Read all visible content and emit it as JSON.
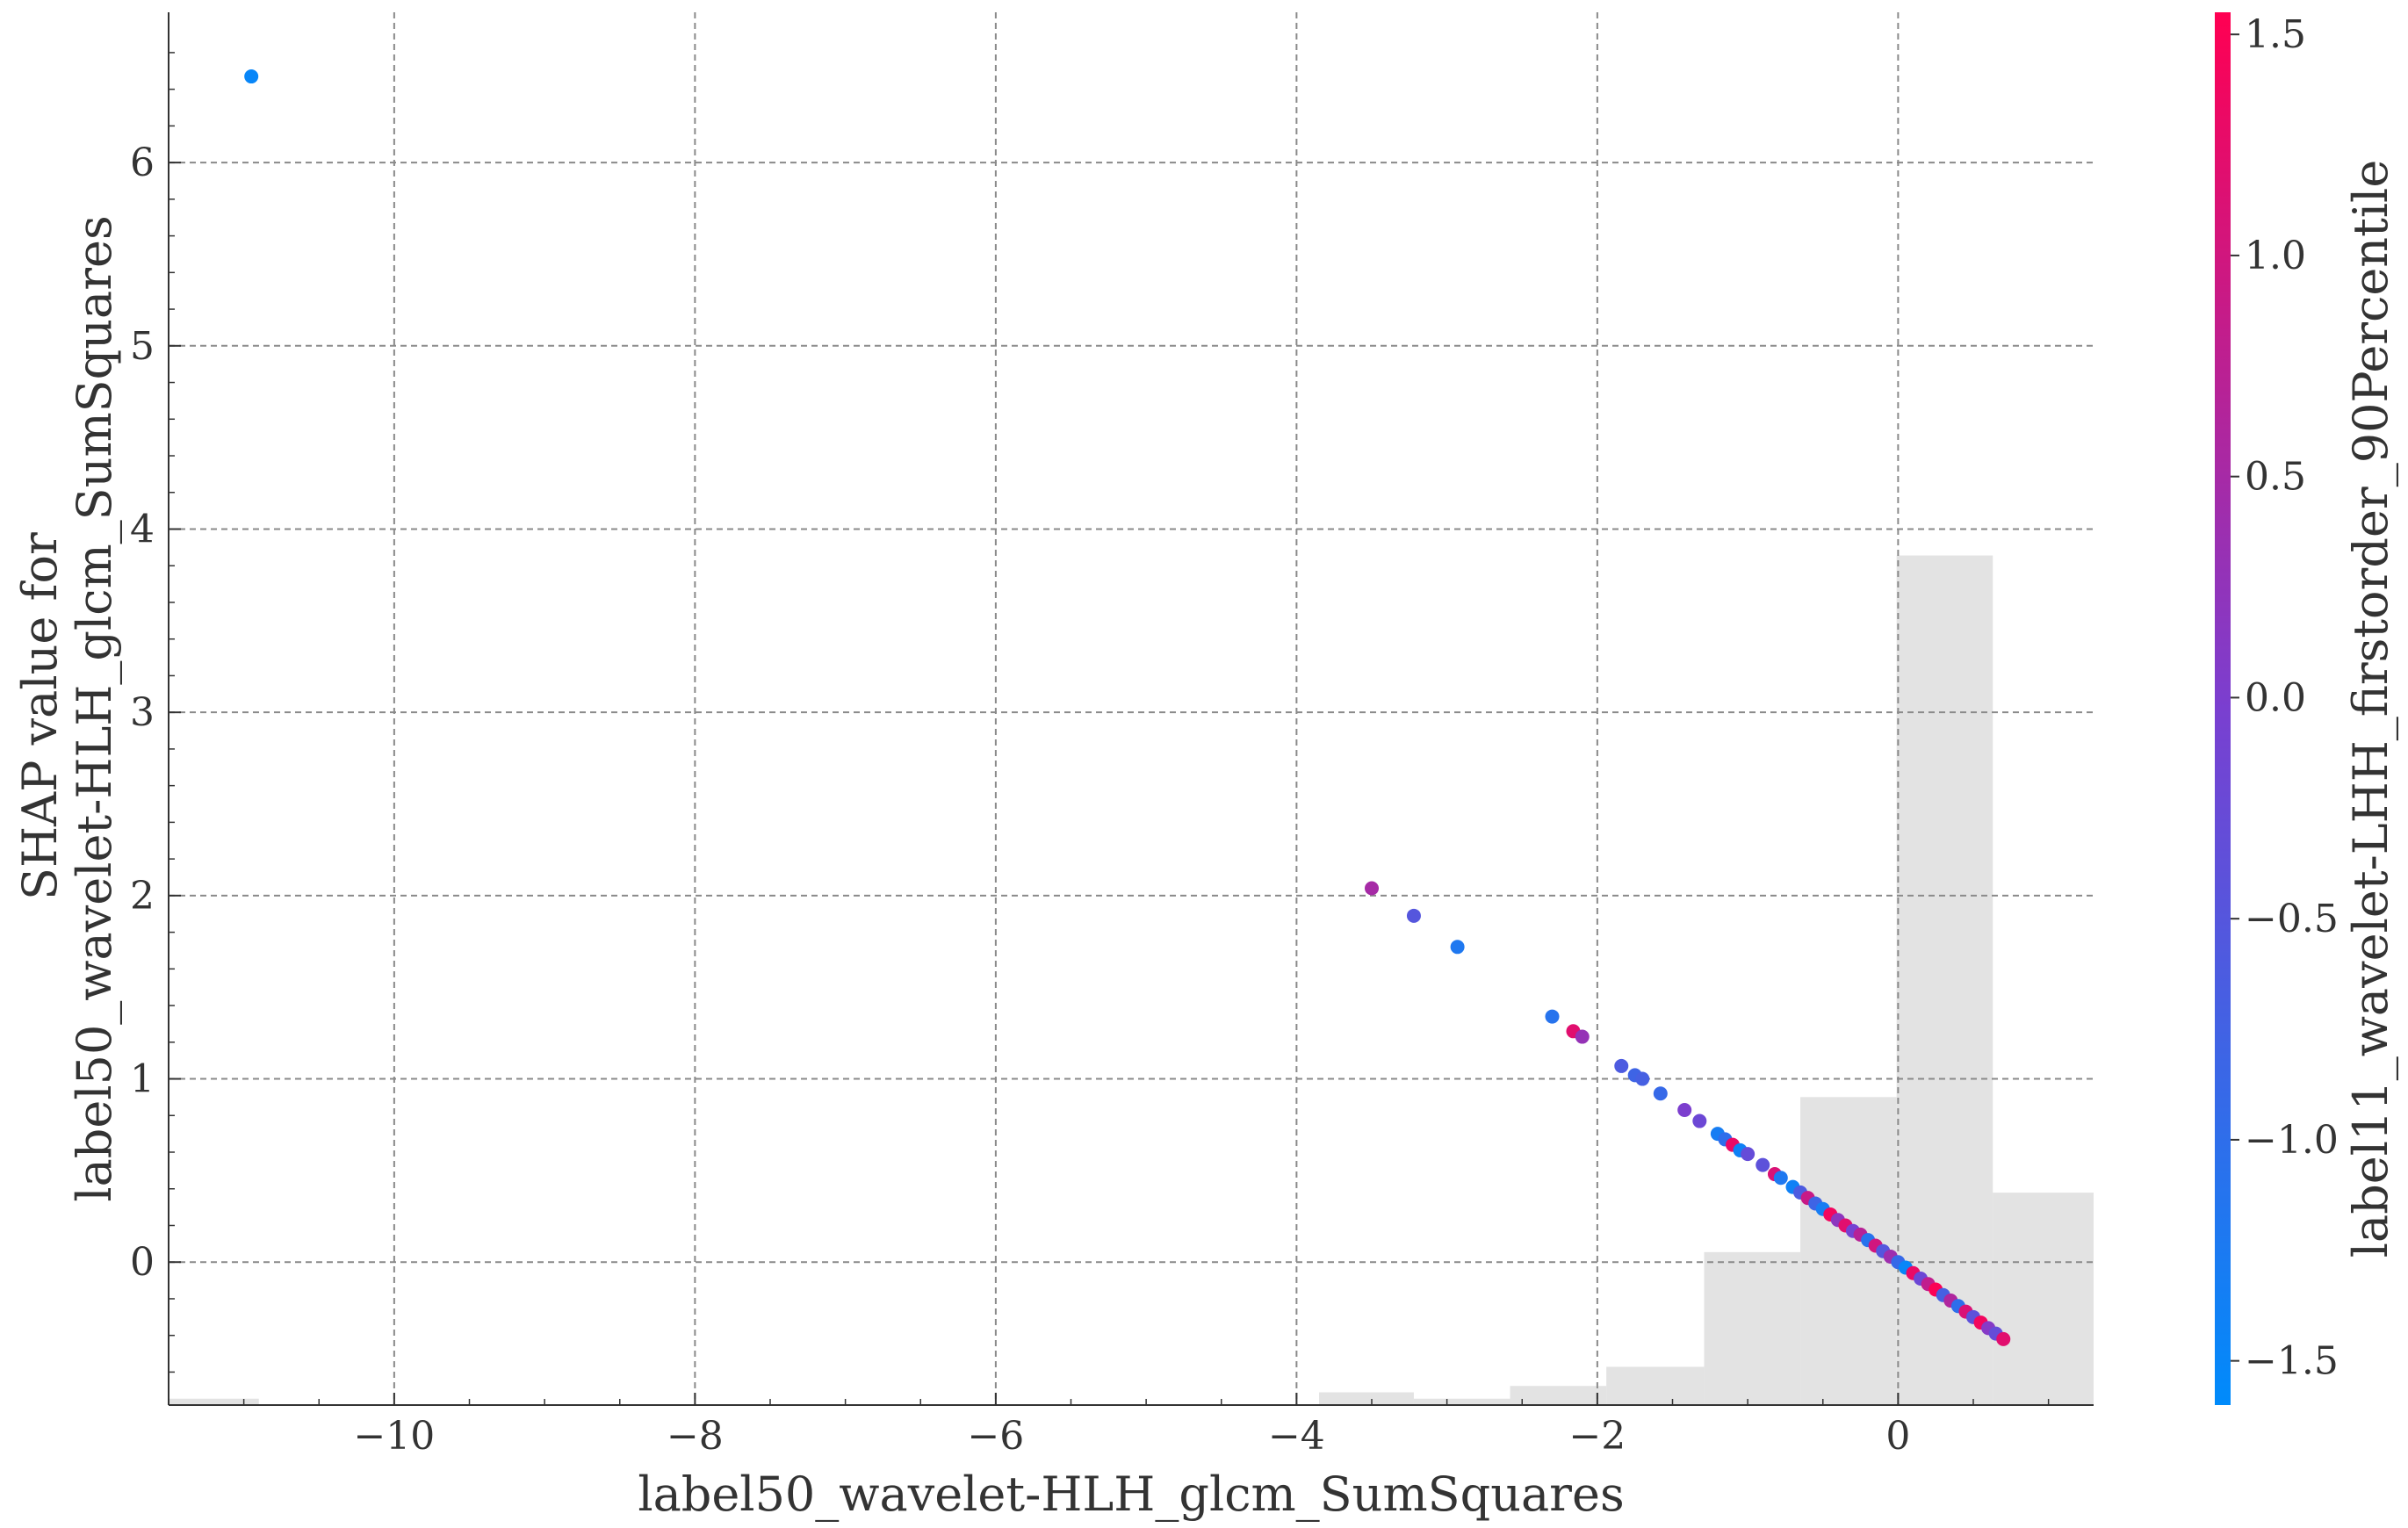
{
  "chart_data": {
    "type": "scatter",
    "title": "",
    "xlabel": "label50_wavelet-HLH_glcm_SumSquares",
    "ylabel_lines": [
      "SHAP value for",
      "label50_wavelet-HLH_glcm_SumSquares"
    ],
    "xlim": [
      -11.5,
      1.3
    ],
    "ylim": [
      -0.78,
      6.82
    ],
    "xticks": [
      -10,
      -8,
      -6,
      -4,
      -2,
      0
    ],
    "xtick_labels": [
      "−10",
      "−8",
      "−6",
      "−4",
      "−2",
      "0"
    ],
    "yticks": [
      0,
      1,
      2,
      3,
      4,
      5,
      6
    ],
    "ytick_labels": [
      "0",
      "1",
      "2",
      "3",
      "4",
      "5",
      "6"
    ],
    "grid": true,
    "colorbar": {
      "label": "label11_wavelet-LHH_firstorder_90Percentile",
      "range": [
        -1.6,
        1.55
      ],
      "ticks": [
        -1.5,
        -1.0,
        -0.5,
        0.0,
        0.5,
        1.0,
        1.5
      ],
      "tick_labels": [
        "−1.5",
        "−1.0",
        "−0.5",
        "0.0",
        "0.5",
        "1.0",
        "1.5"
      ],
      "colors": [
        "#008bfb",
        "#ff0052"
      ]
    },
    "histogram": {
      "color": "#e3e3e3",
      "bins": [
        {
          "x0": -11.5,
          "x1": -10.9,
          "height": 0.03
        },
        {
          "x0": -3.85,
          "x1": -3.22,
          "height": 0.06
        },
        {
          "x0": -3.22,
          "x1": -2.58,
          "height": 0.03
        },
        {
          "x0": -2.58,
          "x1": -1.94,
          "height": 0.09
        },
        {
          "x0": -1.94,
          "x1": -1.29,
          "height": 0.18
        },
        {
          "x0": -1.29,
          "x1": -0.65,
          "height": 0.72
        },
        {
          "x0": -0.65,
          "x1": -0.01,
          "height": 1.45
        },
        {
          "x0": -0.01,
          "x1": 0.63,
          "height": 4.0
        },
        {
          "x0": 0.63,
          "x1": 1.3,
          "height": 1.0
        }
      ]
    },
    "points": [
      {
        "x": -10.95,
        "y": 6.47,
        "c": -1.5
      },
      {
        "x": -3.5,
        "y": 2.04,
        "c": 0.5
      },
      {
        "x": -3.22,
        "y": 1.89,
        "c": -0.5
      },
      {
        "x": -2.93,
        "y": 1.72,
        "c": -1.2
      },
      {
        "x": -2.3,
        "y": 1.34,
        "c": -1.1
      },
      {
        "x": -2.16,
        "y": 1.26,
        "c": 1.2
      },
      {
        "x": -2.1,
        "y": 1.23,
        "c": 0.3
      },
      {
        "x": -1.84,
        "y": 1.07,
        "c": -0.6
      },
      {
        "x": -1.75,
        "y": 1.02,
        "c": -0.8
      },
      {
        "x": -1.7,
        "y": 1.0,
        "c": -0.7
      },
      {
        "x": -1.58,
        "y": 0.92,
        "c": -0.9
      },
      {
        "x": -1.42,
        "y": 0.83,
        "c": 0.0
      },
      {
        "x": -1.32,
        "y": 0.77,
        "c": -0.2
      },
      {
        "x": -1.2,
        "y": 0.7,
        "c": -1.3
      },
      {
        "x": -1.15,
        "y": 0.67,
        "c": -1.0
      },
      {
        "x": -1.1,
        "y": 0.64,
        "c": 1.3
      },
      {
        "x": -1.05,
        "y": 0.61,
        "c": -1.4
      },
      {
        "x": -1.0,
        "y": 0.59,
        "c": -0.3
      },
      {
        "x": -0.9,
        "y": 0.53,
        "c": -0.4
      },
      {
        "x": -0.82,
        "y": 0.48,
        "c": 1.1
      },
      {
        "x": -0.78,
        "y": 0.46,
        "c": -1.2
      },
      {
        "x": -0.7,
        "y": 0.41,
        "c": -1.4
      },
      {
        "x": -0.65,
        "y": 0.38,
        "c": -0.6
      },
      {
        "x": -0.6,
        "y": 0.35,
        "c": 0.9
      },
      {
        "x": -0.55,
        "y": 0.32,
        "c": -0.8
      },
      {
        "x": -0.5,
        "y": 0.29,
        "c": -1.3
      },
      {
        "x": -0.45,
        "y": 0.26,
        "c": 1.4
      },
      {
        "x": -0.4,
        "y": 0.23,
        "c": 0.2
      },
      {
        "x": -0.35,
        "y": 0.2,
        "c": 1.2
      },
      {
        "x": -0.3,
        "y": 0.17,
        "c": -0.1
      },
      {
        "x": -0.25,
        "y": 0.15,
        "c": 0.7
      },
      {
        "x": -0.2,
        "y": 0.12,
        "c": -1.1
      },
      {
        "x": -0.15,
        "y": 0.09,
        "c": 1.0
      },
      {
        "x": -0.1,
        "y": 0.06,
        "c": -0.5
      },
      {
        "x": -0.05,
        "y": 0.03,
        "c": 0.4
      },
      {
        "x": 0.0,
        "y": 0.0,
        "c": -0.9
      },
      {
        "x": 0.05,
        "y": -0.03,
        "c": -1.5
      },
      {
        "x": 0.1,
        "y": -0.06,
        "c": 1.3
      },
      {
        "x": 0.15,
        "y": -0.09,
        "c": -0.2
      },
      {
        "x": 0.2,
        "y": -0.12,
        "c": 0.8
      },
      {
        "x": 0.25,
        "y": -0.15,
        "c": 1.5
      },
      {
        "x": 0.3,
        "y": -0.18,
        "c": -0.7
      },
      {
        "x": 0.35,
        "y": -0.21,
        "c": 0.6
      },
      {
        "x": 0.4,
        "y": -0.24,
        "c": -1.0
      },
      {
        "x": 0.45,
        "y": -0.27,
        "c": 1.1
      },
      {
        "x": 0.5,
        "y": -0.3,
        "c": -0.4
      },
      {
        "x": 0.55,
        "y": -0.33,
        "c": 1.4
      },
      {
        "x": 0.6,
        "y": -0.36,
        "c": 0.1
      },
      {
        "x": 0.65,
        "y": -0.39,
        "c": -0.3
      },
      {
        "x": 0.7,
        "y": -0.42,
        "c": 1.2
      }
    ]
  }
}
